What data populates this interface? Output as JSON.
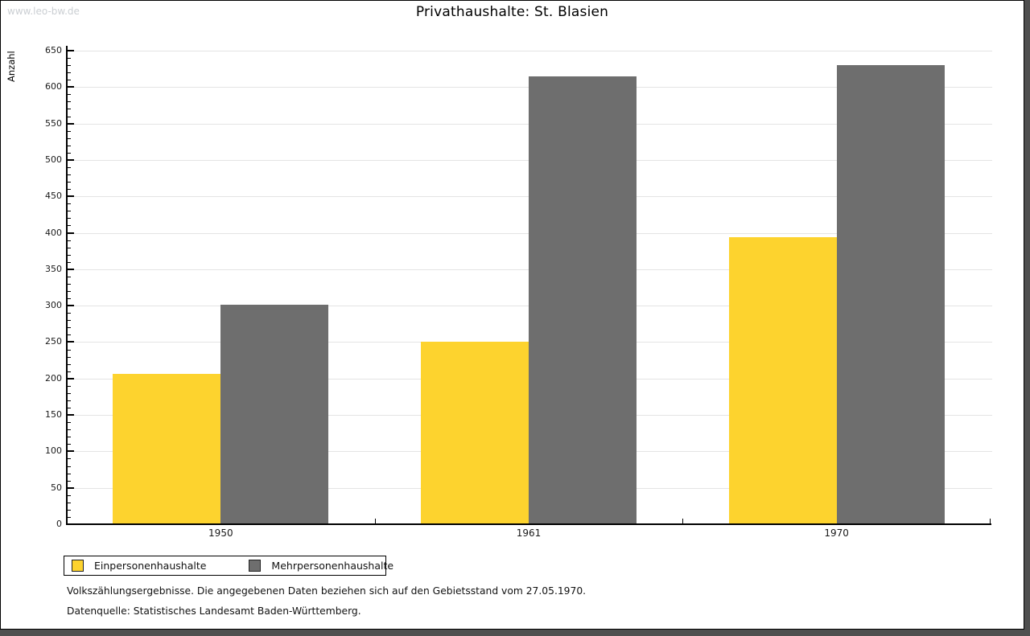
{
  "watermark": "www.leo-bw.de",
  "title": "Privathaushalte: St. Blasien",
  "footer": {
    "line1": "Volkszählungsergebnisse. Die angegebenen Daten beziehen sich auf den Gebietsstand vom 27.05.1970.",
    "line2": "Datenquelle: Statistisches Landesamt Baden-Württemberg."
  },
  "colors": {
    "series_yellow": "#fdd32e",
    "series_gray": "#6e6e6e",
    "gridline": "#e4e4e4",
    "watermark": "#cbcfd3",
    "frame_shadow": "#4f4f4f"
  },
  "chart_data": {
    "type": "bar",
    "title": "Privathaushalte: St. Blasien",
    "xlabel": "",
    "ylabel": "Anzahl",
    "categories": [
      "1950",
      "1961",
      "1970"
    ],
    "series": [
      {
        "name": "Einpersonenhaushalte",
        "color": "#fdd32e",
        "values": [
          206,
          251,
          394
        ]
      },
      {
        "name": "Mehrpersonenhaushalte",
        "color": "#6e6e6e",
        "values": [
          301,
          615,
          630
        ]
      }
    ],
    "ylim": [
      0,
      650
    ],
    "ytick_major_step": 50,
    "ytick_minor_step": 10,
    "grid": "horizontal-major",
    "legend_position": "bottom-left"
  }
}
